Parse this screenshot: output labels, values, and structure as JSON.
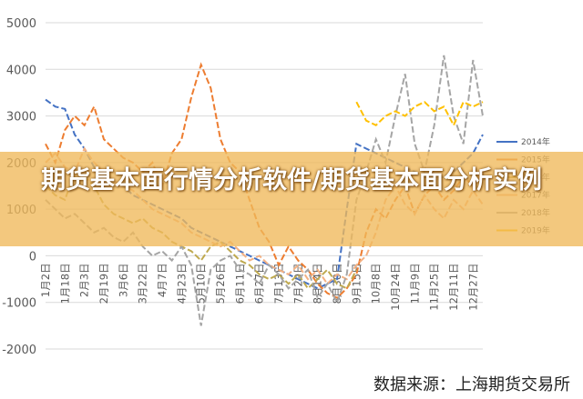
{
  "chart_data": {
    "type": "line",
    "title": "期货基本面行情分析软件/期货基本面分析实例",
    "source": "数据来源：上海期货交易所",
    "categories": [
      "1月2日",
      null,
      "1月18日",
      null,
      "2月3日",
      null,
      "2月19日",
      null,
      "3月6日",
      null,
      "3月22日",
      null,
      "4月7日",
      null,
      "4月23日",
      null,
      "5月10日",
      null,
      "5月26日",
      null,
      "6月11日",
      null,
      "6月27日",
      null,
      "7月13日",
      null,
      "7月29日",
      null,
      "8月14日",
      null,
      "8月30日",
      null,
      "9月15日",
      null,
      "10月8日",
      null,
      "10月24日",
      null,
      "11月9日",
      null,
      "11月25日",
      null,
      "12月11日",
      null,
      "12月27日",
      null
    ],
    "ylim": [
      -2000,
      5000
    ],
    "yticks": [
      -2000,
      -1000,
      0,
      1000,
      2000,
      3000,
      4000,
      5000
    ],
    "grid": true,
    "legend": "right",
    "series": [
      {
        "name": "2014年",
        "color": "#4472c4",
        "values": [
          3350,
          3200,
          3150,
          2600,
          2300,
          1900,
          1800,
          1600,
          1500,
          1300,
          1200,
          1100,
          1000,
          900,
          800,
          600,
          500,
          400,
          300,
          200,
          100,
          0,
          -100,
          -200,
          -300,
          -400,
          -500,
          -600,
          -700,
          -600,
          -500,
          1000,
          2400,
          2300,
          2200,
          2100,
          2000,
          1900,
          1800,
          1700,
          1600,
          1700,
          1800,
          2000,
          2200,
          2600
        ]
      },
      {
        "name": "2015年",
        "color": "#ed7d31",
        "values": [
          2400,
          2000,
          2700,
          3000,
          2800,
          3200,
          2500,
          2300,
          2100,
          2000,
          1800,
          2000,
          1500,
          2200,
          2500,
          3400,
          4100,
          3600,
          2500,
          2000,
          1800,
          1200,
          600,
          300,
          -200,
          200,
          -100,
          -300,
          -600,
          -800,
          -900,
          -700,
          -400,
          500,
          1000,
          800,
          1200,
          1500,
          900,
          1300,
          1500,
          1200,
          1400,
          1700,
          1500,
          1800
        ]
      },
      {
        "name": "2016年",
        "color": "#bfa94f",
        "values": [
          1500,
          1300,
          1200,
          1800,
          1700,
          1500,
          1100,
          900,
          800,
          700,
          800,
          600,
          500,
          300,
          200,
          100,
          -100,
          200,
          300,
          100,
          -100,
          -200,
          -400,
          -500,
          -400,
          -600,
          -400,
          -700,
          -500,
          -300,
          -600,
          -700,
          -300,
          null,
          null,
          null,
          null,
          null,
          null,
          null,
          null,
          null,
          null,
          null,
          null,
          null
        ]
      },
      {
        "name": "2017年",
        "color": "#f4b183",
        "values": [
          2000,
          2200,
          1900,
          1800,
          2300,
          2000,
          1800,
          1600,
          1500,
          1400,
          1200,
          1000,
          900,
          800,
          700,
          500,
          400,
          300,
          200,
          300,
          100,
          -100,
          0,
          -200,
          -300,
          -400,
          -200,
          -500,
          -300,
          -600,
          -400,
          -500,
          -200,
          0,
          500,
          1200,
          1500,
          1100,
          900,
          1300,
          1000,
          800,
          1200,
          1000,
          1400,
          1100
        ]
      },
      {
        "name": "2018年",
        "color": "#a5a5a5",
        "values": [
          1200,
          1000,
          800,
          900,
          700,
          500,
          600,
          400,
          300,
          500,
          200,
          0,
          100,
          -100,
          200,
          -200,
          -1500,
          -300,
          -100,
          0,
          -300,
          -400,
          -600,
          -200,
          -400,
          -700,
          -500,
          -300,
          -900,
          -600,
          -1000,
          -400,
          1200,
          1800,
          2500,
          2000,
          3000,
          3900,
          2400,
          1800,
          2800,
          4300,
          3000,
          2400,
          4200,
          3000
        ]
      },
      {
        "name": "2019年",
        "color": "#ffc000",
        "values": [
          null,
          null,
          null,
          null,
          null,
          null,
          null,
          null,
          null,
          null,
          null,
          null,
          null,
          null,
          null,
          null,
          null,
          null,
          null,
          null,
          null,
          null,
          null,
          null,
          null,
          null,
          null,
          null,
          null,
          null,
          null,
          null,
          3300,
          2900,
          2800,
          3000,
          3100,
          3000,
          3200,
          3300,
          3100,
          3200,
          2800,
          3300,
          3200,
          3300
        ]
      }
    ]
  }
}
